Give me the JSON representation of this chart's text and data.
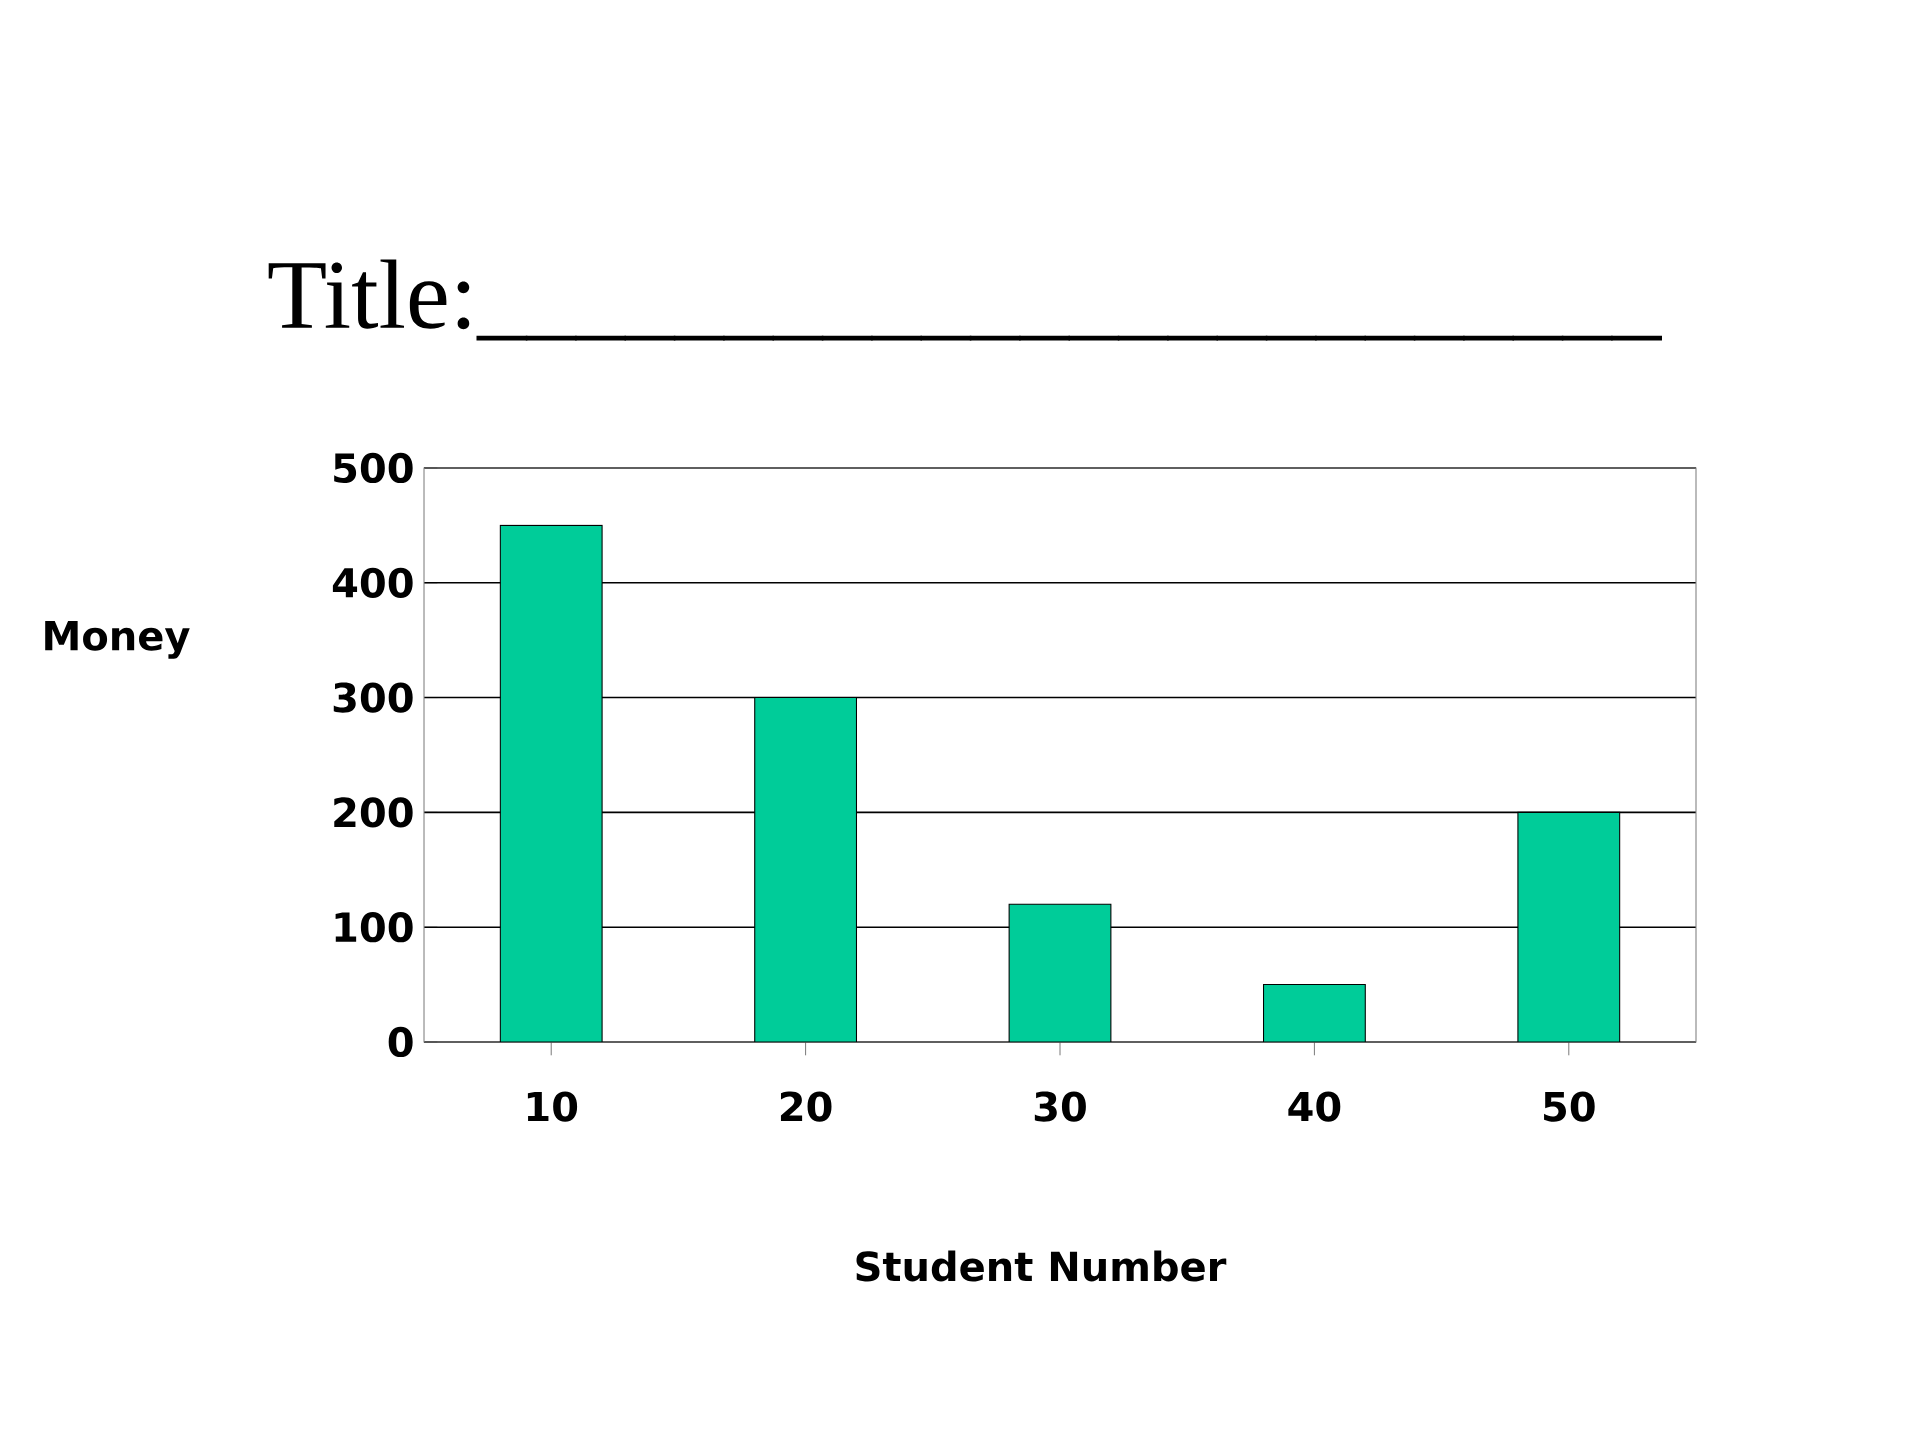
{
  "chart_data": {
    "type": "bar",
    "title": "Title:________________________",
    "xlabel": "Student Number",
    "ylabel": "Money",
    "categories": [
      "10",
      "20",
      "30",
      "40",
      "50"
    ],
    "values": [
      450,
      300,
      120,
      50,
      200
    ],
    "color": "#00cc99",
    "ylim": [
      0,
      500
    ],
    "yticks": [
      0,
      100,
      200,
      300,
      400,
      500
    ],
    "grid": "y"
  }
}
